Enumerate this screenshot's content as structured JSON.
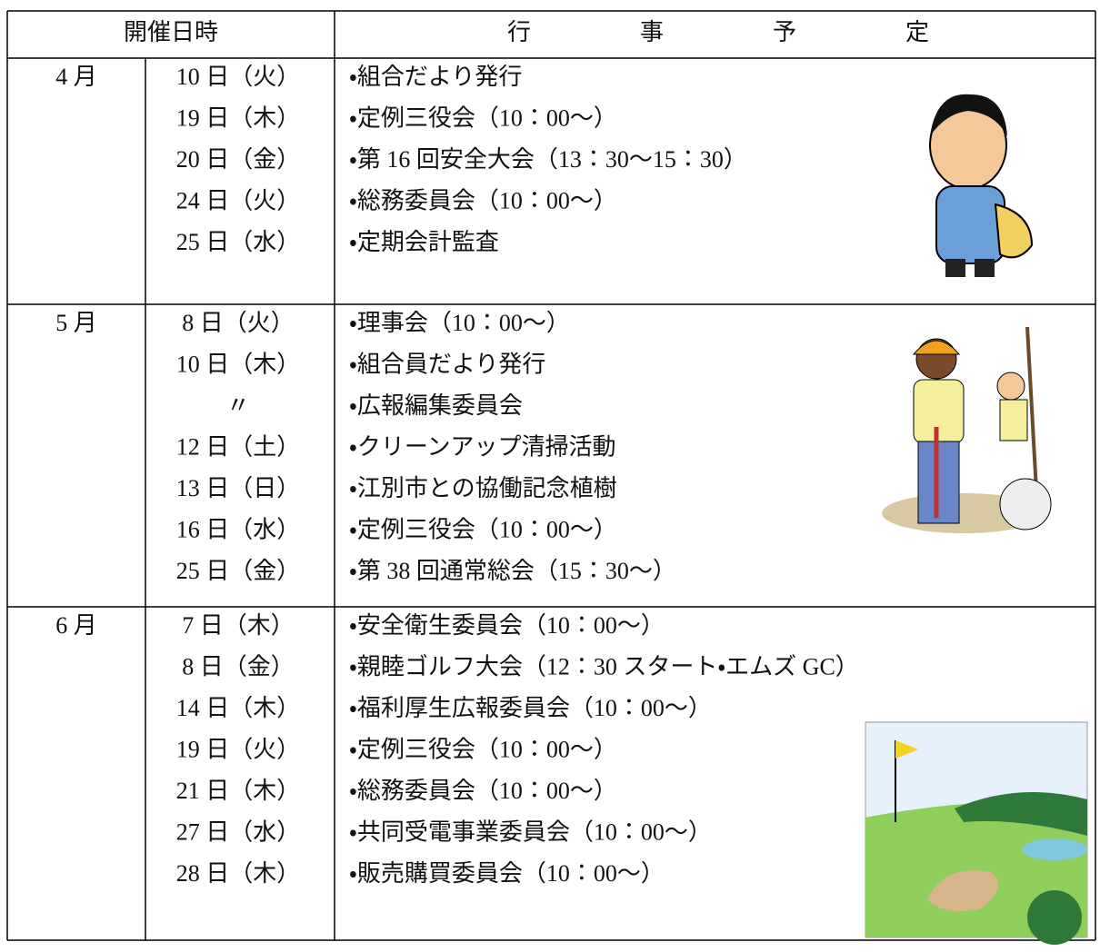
{
  "header": {
    "date": "開催日時",
    "events": "行事予定"
  },
  "months": [
    {
      "month": "4 月",
      "rows": [
        {
          "date": "10 日（火）",
          "event": "・組合だより発行"
        },
        {
          "date": "19 日（木）",
          "event": "・定例三役会（10：00～）"
        },
        {
          "date": "20 日（金）",
          "event": "・第 16 回安全大会（13：30～15：30）"
        },
        {
          "date": "24 日（火）",
          "event": "・総務委員会（10：00～）"
        },
        {
          "date": "25 日（水）",
          "event": "・定期会計監査"
        }
      ]
    },
    {
      "month": "5 月",
      "rows": [
        {
          "date": "8 日（火）",
          "event": "・理事会（10：00～）"
        },
        {
          "date": "10 日（木）",
          "event": "・組合員だより発行"
        },
        {
          "date": "〃",
          "event": "・広報編集委員会"
        },
        {
          "date": "12 日（土）",
          "event": "・クリーンアップ清掃活動"
        },
        {
          "date": "13 日（日）",
          "event": "・江別市との協働記念植樹"
        },
        {
          "date": "16 日（水）",
          "event": "・定例三役会（10：00～）"
        },
        {
          "date": "25 日（金）",
          "event": "・第 38 回通常総会（15：30～）"
        }
      ]
    },
    {
      "month": "6 月",
      "rows": [
        {
          "date": "7 日（木）",
          "event": "・安全衛生委員会（10：00～）"
        },
        {
          "date": "8 日（金）",
          "event": "・親睦ゴルフ大会（12：30 スタート・エムズ GC）"
        },
        {
          "date": "14 日（木）",
          "event": "・福利厚生広報委員会（10：00～）"
        },
        {
          "date": "19 日（火）",
          "event": "・定例三役会（10：00～）"
        },
        {
          "date": "21 日（木）",
          "event": "・総務委員会（10：00～）"
        },
        {
          "date": "27 日（水）",
          "event": "・共同受電事業委員会（10：00～）"
        },
        {
          "date": "28 日（木）",
          "event": "・販売購買委員会（10：00～）"
        }
      ]
    }
  ]
}
